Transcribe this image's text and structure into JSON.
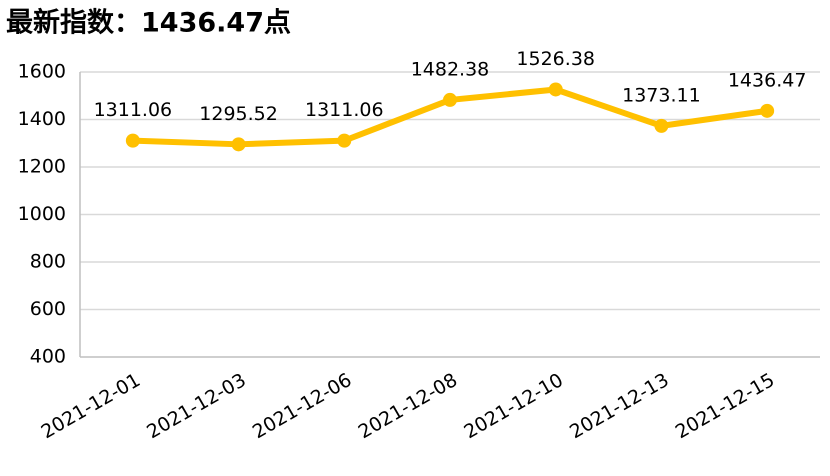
{
  "chart_data": {
    "type": "line",
    "title": "最新指数：1436.47点",
    "categories": [
      "2021-12-01",
      "2021-12-03",
      "2021-12-06",
      "2021-12-08",
      "2021-12-10",
      "2021-12-13",
      "2021-12-15"
    ],
    "values": [
      1311.06,
      1295.52,
      1311.06,
      1482.38,
      1526.38,
      1373.11,
      1436.47
    ],
    "color": "#ffc000",
    "ylim": [
      400,
      1600
    ],
    "yticks": [
      400,
      600,
      800,
      1000,
      1200,
      1400,
      1600
    ],
    "grid": true
  }
}
